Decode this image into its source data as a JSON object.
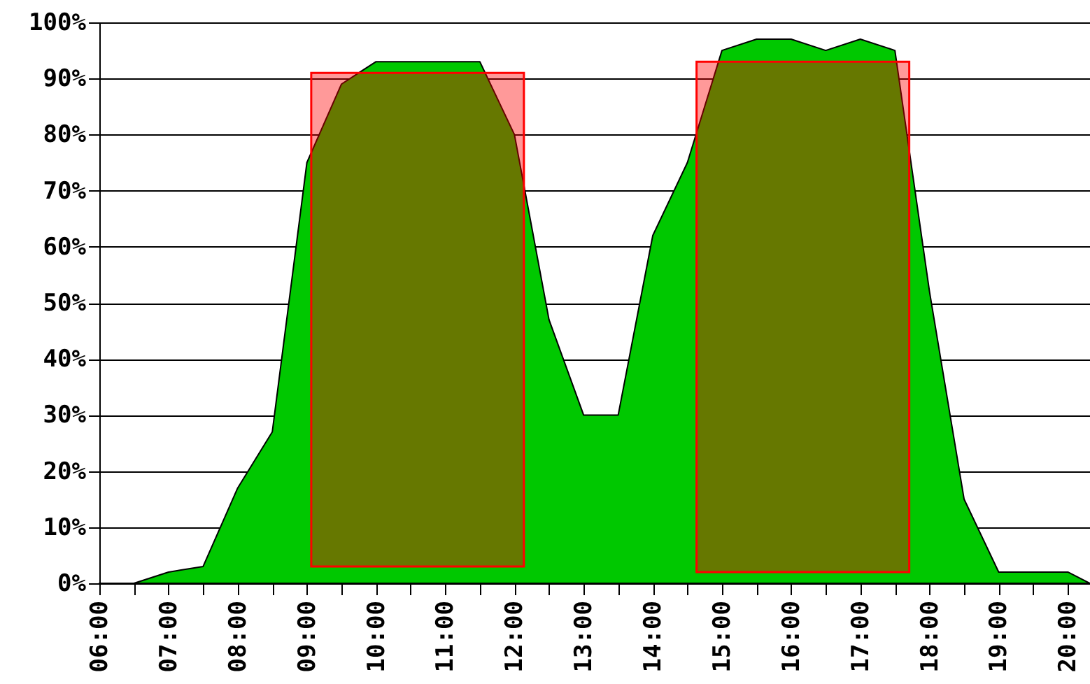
{
  "chart_data": {
    "type": "area",
    "xlim": [
      6,
      20.32
    ],
    "xticks": [
      {
        "value": 6,
        "label": "06:00"
      },
      {
        "value": 6.5,
        "label": null
      },
      {
        "value": 7,
        "label": "07:00"
      },
      {
        "value": 7.5,
        "label": null
      },
      {
        "value": 8,
        "label": "08:00"
      },
      {
        "value": 8.5,
        "label": null
      },
      {
        "value": 9,
        "label": "09:00"
      },
      {
        "value": 9.5,
        "label": null
      },
      {
        "value": 10,
        "label": "10:00"
      },
      {
        "value": 10.5,
        "label": null
      },
      {
        "value": 11,
        "label": "11:00"
      },
      {
        "value": 11.5,
        "label": null
      },
      {
        "value": 12,
        "label": "12:00"
      },
      {
        "value": 12.5,
        "label": null
      },
      {
        "value": 13,
        "label": "13:00"
      },
      {
        "value": 13.5,
        "label": null
      },
      {
        "value": 14,
        "label": "14:00"
      },
      {
        "value": 14.5,
        "label": null
      },
      {
        "value": 15,
        "label": "15:00"
      },
      {
        "value": 15.5,
        "label": null
      },
      {
        "value": 16,
        "label": "16:00"
      },
      {
        "value": 16.5,
        "label": null
      },
      {
        "value": 17,
        "label": "17:00"
      },
      {
        "value": 17.5,
        "label": null
      },
      {
        "value": 18,
        "label": "18:00"
      },
      {
        "value": 18.5,
        "label": null
      },
      {
        "value": 19,
        "label": "19:00"
      },
      {
        "value": 19.5,
        "label": null
      },
      {
        "value": 20,
        "label": "20:00"
      }
    ],
    "ylim": [
      0,
      100
    ],
    "yticks": [
      {
        "value": 0,
        "label": "0%"
      },
      {
        "value": 10,
        "label": "10%"
      },
      {
        "value": 20,
        "label": "20%"
      },
      {
        "value": 30,
        "label": "30%"
      },
      {
        "value": 40,
        "label": "40%"
      },
      {
        "value": 50,
        "label": "50%"
      },
      {
        "value": 60,
        "label": "60%"
      },
      {
        "value": 70,
        "label": "70%"
      },
      {
        "value": 80,
        "label": "80%"
      },
      {
        "value": 90,
        "label": "90%"
      },
      {
        "value": 100,
        "label": "100%"
      }
    ],
    "grid": "y",
    "series": [
      {
        "color": "#00c800",
        "x": [
          6,
          6.5,
          7,
          7.5,
          8,
          8.5,
          9,
          9.5,
          10,
          11,
          11.5,
          12,
          12.5,
          13,
          13.5,
          14,
          14.5,
          15,
          15.5,
          16,
          16.5,
          17,
          17.5,
          18,
          18.5,
          19,
          19.5,
          20,
          20.32
        ],
        "values": [
          0,
          0,
          2,
          3,
          17,
          27,
          75,
          89,
          93,
          93,
          93,
          80,
          47,
          30,
          30,
          62,
          75,
          95,
          97,
          97,
          95,
          97,
          95,
          52,
          15,
          2,
          2,
          2,
          0
        ]
      },
      {
        "type": "bar",
        "color": "#ff0000",
        "x": [
          10.6,
          16.17
        ],
        "base": [
          3,
          2
        ],
        "values": [
          88,
          91
        ]
      }
    ]
  }
}
